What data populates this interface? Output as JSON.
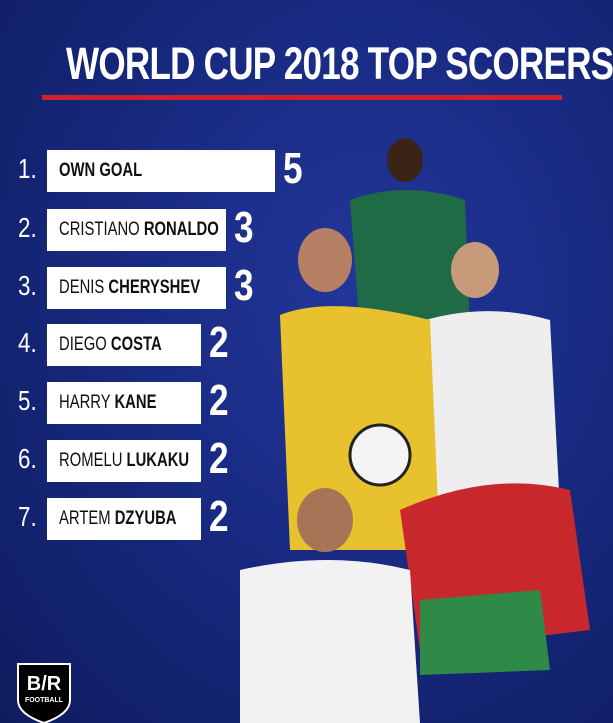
{
  "title": "WORLD CUP 2018 TOP SCORERS",
  "colors": {
    "background": "#182a82",
    "accent": "#d0202e",
    "bar": "#ffffff"
  },
  "logo": {
    "text": "B/R",
    "sub": "FOOTBALL"
  },
  "chart_data": {
    "type": "bar",
    "orientation": "horizontal",
    "title": "WORLD CUP 2018 TOP SCORERS",
    "ranks": [
      "1.",
      "2.",
      "3.",
      "4.",
      "5.",
      "6.",
      "7."
    ],
    "categories": [
      {
        "first": "",
        "last": "OWN GOAL"
      },
      {
        "first": "CRISTIANO",
        "last": "RONALDO"
      },
      {
        "first": "DENIS",
        "last": "CHERYSHEV"
      },
      {
        "first": "DIEGO",
        "last": "COSTA"
      },
      {
        "first": "HARRY",
        "last": "KANE"
      },
      {
        "first": "ROMELU",
        "last": "LUKAKU"
      },
      {
        "first": "ARTEM",
        "last": "DZYUBA"
      }
    ],
    "values": [
      5,
      3,
      3,
      2,
      2,
      2,
      2
    ],
    "grid": false
  }
}
